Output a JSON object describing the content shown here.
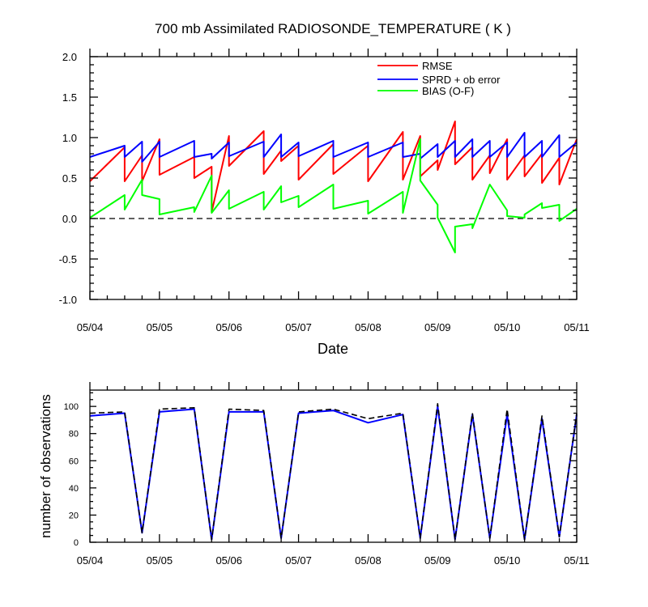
{
  "chart_data": [
    {
      "type": "line",
      "title": "700 mb Assimilated RADIOSONDE_TEMPERATURE ( K )",
      "xlabel": "Date",
      "ylabel": "",
      "ylim": [
        -1.0,
        2.0
      ],
      "yticks": [
        "-1.0",
        "-0.5",
        "0.0",
        "0.5",
        "1.0",
        "1.5",
        "2.0"
      ],
      "xticks": [
        "05/04",
        "05/05",
        "05/06",
        "05/07",
        "05/08",
        "05/09",
        "05/10",
        "05/11"
      ],
      "grid": false,
      "legend_position": "top-right",
      "reference_line": {
        "y": 0.0,
        "style": "dashed"
      },
      "series": [
        {
          "name": "RMSE",
          "color": "#ff0000",
          "points": [
            [
              0.0,
              0.46
            ],
            [
              0.5,
              0.88
            ],
            [
              0.5,
              0.46
            ],
            [
              0.75,
              0.78
            ],
            [
              0.75,
              0.46
            ],
            [
              1.0,
              0.98
            ],
            [
              1.0,
              0.54
            ],
            [
              1.5,
              0.76
            ],
            [
              1.5,
              0.5
            ],
            [
              1.75,
              0.64
            ],
            [
              1.75,
              0.08
            ],
            [
              2.0,
              1.02
            ],
            [
              2.0,
              0.65
            ],
            [
              2.5,
              1.08
            ],
            [
              2.5,
              0.55
            ],
            [
              2.75,
              0.84
            ],
            [
              2.75,
              0.71
            ],
            [
              3.0,
              0.9
            ],
            [
              3.0,
              0.48
            ],
            [
              3.5,
              0.92
            ],
            [
              3.5,
              0.55
            ],
            [
              4.0,
              0.9
            ],
            [
              4.0,
              0.46
            ],
            [
              4.5,
              1.07
            ],
            [
              4.5,
              0.48
            ],
            [
              4.75,
              1.02
            ],
            [
              4.75,
              0.52
            ],
            [
              5.0,
              0.72
            ],
            [
              5.0,
              0.6
            ],
            [
              5.25,
              1.2
            ],
            [
              5.25,
              0.67
            ],
            [
              5.5,
              0.88
            ],
            [
              5.5,
              0.48
            ],
            [
              5.75,
              0.78
            ],
            [
              5.75,
              0.56
            ],
            [
              6.0,
              0.98
            ],
            [
              6.0,
              0.48
            ],
            [
              6.25,
              0.78
            ],
            [
              6.25,
              0.52
            ],
            [
              6.5,
              0.8
            ],
            [
              6.5,
              0.44
            ],
            [
              6.75,
              0.75
            ],
            [
              6.75,
              0.42
            ],
            [
              7.0,
              0.98
            ]
          ]
        },
        {
          "name": "SPRD + ob error",
          "color": "#0000ff",
          "points": [
            [
              0.0,
              0.76
            ],
            [
              0.5,
              0.9
            ],
            [
              0.5,
              0.76
            ],
            [
              0.75,
              0.95
            ],
            [
              0.75,
              0.7
            ],
            [
              1.0,
              0.95
            ],
            [
              1.0,
              0.76
            ],
            [
              1.5,
              0.96
            ],
            [
              1.5,
              0.76
            ],
            [
              1.75,
              0.8
            ],
            [
              1.75,
              0.74
            ],
            [
              2.0,
              0.94
            ],
            [
              2.0,
              0.77
            ],
            [
              2.5,
              0.95
            ],
            [
              2.5,
              0.76
            ],
            [
              2.75,
              1.04
            ],
            [
              2.75,
              0.76
            ],
            [
              3.0,
              0.94
            ],
            [
              3.0,
              0.77
            ],
            [
              3.5,
              0.96
            ],
            [
              3.5,
              0.76
            ],
            [
              4.0,
              0.94
            ],
            [
              4.0,
              0.76
            ],
            [
              4.5,
              0.94
            ],
            [
              4.5,
              0.76
            ],
            [
              4.75,
              0.8
            ],
            [
              4.75,
              0.74
            ],
            [
              5.0,
              0.92
            ],
            [
              5.0,
              0.76
            ],
            [
              5.25,
              0.96
            ],
            [
              5.25,
              0.76
            ],
            [
              5.5,
              0.98
            ],
            [
              5.5,
              0.76
            ],
            [
              5.75,
              0.96
            ],
            [
              5.75,
              0.76
            ],
            [
              6.0,
              0.94
            ],
            [
              6.0,
              0.76
            ],
            [
              6.25,
              1.06
            ],
            [
              6.25,
              0.76
            ],
            [
              6.5,
              0.96
            ],
            [
              6.5,
              0.76
            ],
            [
              6.75,
              1.03
            ],
            [
              6.75,
              0.76
            ],
            [
              7.0,
              0.94
            ]
          ]
        },
        {
          "name": "BIAS (O-F)",
          "color": "#00ff00",
          "points": [
            [
              0.0,
              0.01
            ],
            [
              0.5,
              0.29
            ],
            [
              0.5,
              0.11
            ],
            [
              0.75,
              0.48
            ],
            [
              0.75,
              0.29
            ],
            [
              1.0,
              0.24
            ],
            [
              1.0,
              0.05
            ],
            [
              1.5,
              0.14
            ],
            [
              1.5,
              0.08
            ],
            [
              1.75,
              0.53
            ],
            [
              1.75,
              0.07
            ],
            [
              2.0,
              0.35
            ],
            [
              2.0,
              0.12
            ],
            [
              2.5,
              0.33
            ],
            [
              2.5,
              0.11
            ],
            [
              2.75,
              0.4
            ],
            [
              2.75,
              0.2
            ],
            [
              3.0,
              0.28
            ],
            [
              3.0,
              0.14
            ],
            [
              3.5,
              0.42
            ],
            [
              3.5,
              0.12
            ],
            [
              4.0,
              0.22
            ],
            [
              4.0,
              0.06
            ],
            [
              4.5,
              0.33
            ],
            [
              4.5,
              0.07
            ],
            [
              4.75,
              0.98
            ],
            [
              4.75,
              0.47
            ],
            [
              5.0,
              0.17
            ],
            [
              5.0,
              0.01
            ],
            [
              5.25,
              -0.42
            ],
            [
              5.25,
              -0.1
            ],
            [
              5.5,
              -0.07
            ],
            [
              5.5,
              -0.12
            ],
            [
              5.75,
              0.42
            ],
            [
              5.75,
              0.42
            ],
            [
              6.0,
              0.1
            ],
            [
              6.0,
              0.03
            ],
            [
              6.25,
              0.01
            ],
            [
              6.25,
              0.05
            ],
            [
              6.5,
              0.19
            ],
            [
              6.5,
              0.13
            ],
            [
              6.75,
              0.17
            ],
            [
              6.75,
              -0.03
            ],
            [
              7.0,
              0.12
            ]
          ]
        }
      ]
    },
    {
      "type": "line",
      "title": "",
      "xlabel": "",
      "ylabel": "number of observations",
      "ylim": [
        0,
        112
      ],
      "yticks": [
        "0",
        "20",
        "40",
        "60",
        "80",
        "100"
      ],
      "xticks": [
        "05/04",
        "05/05",
        "05/06",
        "05/07",
        "05/08",
        "05/09",
        "05/10",
        "05/11"
      ],
      "grid": false,
      "series": [
        {
          "style": "solid",
          "color": "#0000ff",
          "points": [
            [
              0.0,
              93
            ],
            [
              0.5,
              95
            ],
            [
              0.75,
              7
            ],
            [
              1.0,
              96
            ],
            [
              1.5,
              98
            ],
            [
              1.75,
              2
            ],
            [
              2.0,
              96
            ],
            [
              2.5,
              96
            ],
            [
              2.75,
              3
            ],
            [
              3.0,
              95
            ],
            [
              3.5,
              97
            ],
            [
              4.0,
              88
            ],
            [
              4.5,
              94
            ],
            [
              4.75,
              3
            ],
            [
              5.0,
              100
            ],
            [
              5.25,
              2
            ],
            [
              5.5,
              94
            ],
            [
              5.75,
              3
            ],
            [
              6.0,
              94
            ],
            [
              6.25,
              2
            ],
            [
              6.5,
              91
            ],
            [
              6.75,
              4
            ],
            [
              7.0,
              94
            ]
          ]
        },
        {
          "style": "dashed",
          "color": "#000000",
          "points": [
            [
              0.0,
              95
            ],
            [
              0.5,
              96
            ],
            [
              0.75,
              7
            ],
            [
              1.0,
              98
            ],
            [
              1.5,
              99
            ],
            [
              1.75,
              2
            ],
            [
              2.0,
              98
            ],
            [
              2.5,
              97
            ],
            [
              2.75,
              3
            ],
            [
              3.0,
              96
            ],
            [
              3.5,
              98
            ],
            [
              4.0,
              91
            ],
            [
              4.5,
              95
            ],
            [
              4.75,
              3
            ],
            [
              5.0,
              102
            ],
            [
              5.25,
              2
            ],
            [
              5.5,
              95
            ],
            [
              5.75,
              3
            ],
            [
              6.0,
              98
            ],
            [
              6.25,
              2
            ],
            [
              6.5,
              93
            ],
            [
              6.75,
              4
            ],
            [
              7.0,
              95
            ]
          ]
        }
      ]
    }
  ]
}
